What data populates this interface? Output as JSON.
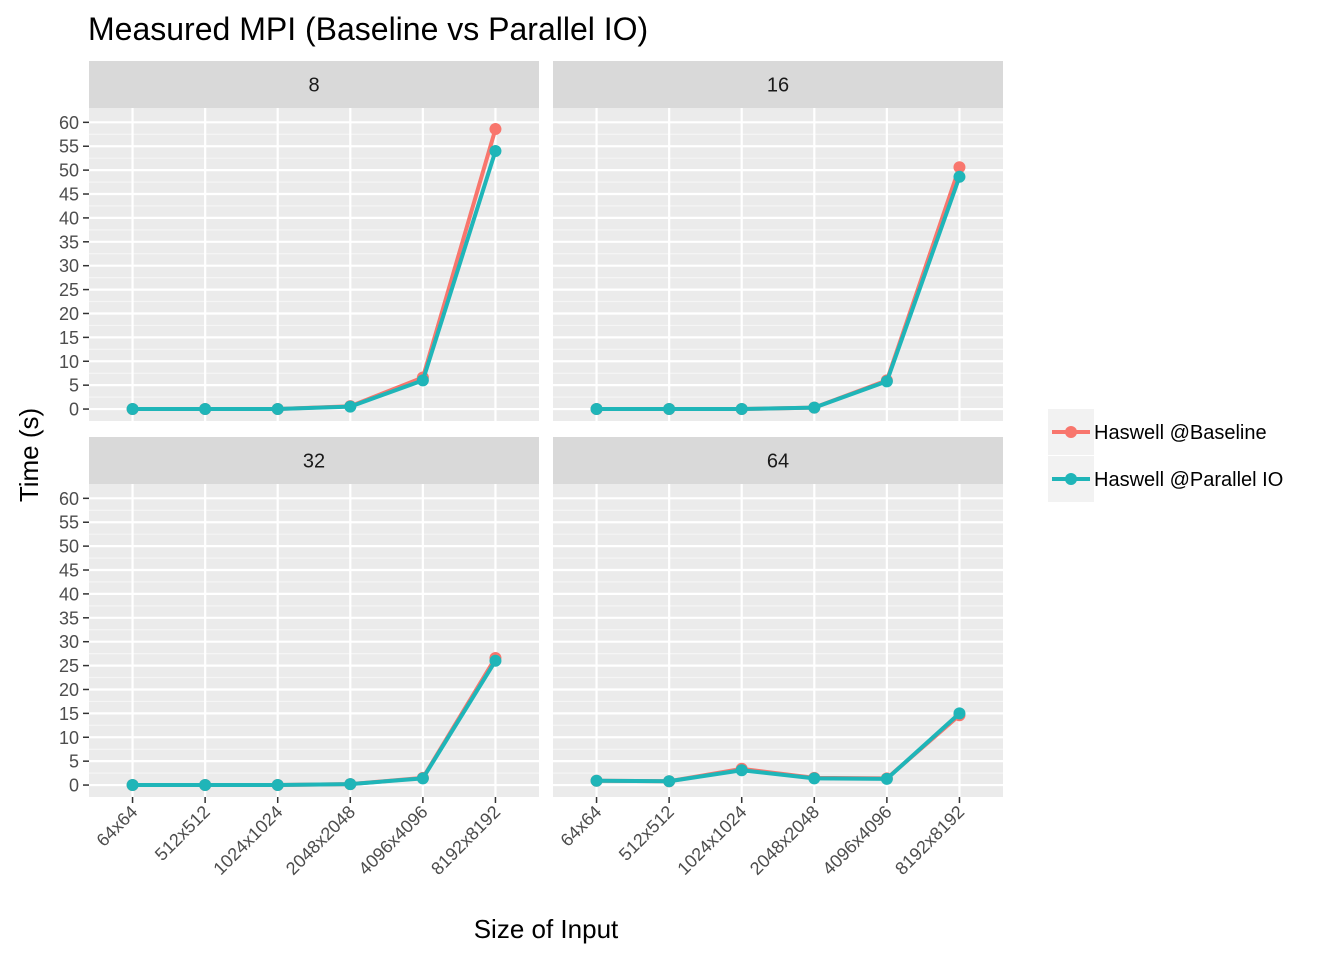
{
  "chart_data": {
    "type": "line",
    "title": "Measured MPI (Baseline vs Parallel IO)",
    "xlabel": "Size of Input",
    "ylabel": "Time (s)",
    "categories": [
      "64x64",
      "512x512",
      "1024x1024",
      "2048x2048",
      "4096x4096",
      "8192x8192"
    ],
    "yticks": [
      0,
      5,
      10,
      15,
      20,
      25,
      30,
      35,
      40,
      45,
      50,
      55,
      60
    ],
    "ylim": [
      -2.5,
      63
    ],
    "grid": true,
    "legend_position": "right",
    "series_styles": [
      {
        "name": "Haswell @Baseline",
        "color": "#F8766D"
      },
      {
        "name": "Haswell @Parallel IO",
        "color": "#1FB5B8"
      }
    ],
    "panels": [
      {
        "label": "8",
        "series": [
          {
            "name": "Haswell @Baseline",
            "values": [
              0.0,
              0.0,
              0.0,
              0.6,
              6.6,
              58.6
            ]
          },
          {
            "name": "Haswell @Parallel IO",
            "values": [
              0.0,
              0.0,
              0.0,
              0.5,
              6.0,
              54.0
            ]
          }
        ]
      },
      {
        "label": "16",
        "series": [
          {
            "name": "Haswell @Baseline",
            "values": [
              0.0,
              0.0,
              0.0,
              0.3,
              6.0,
              50.6
            ]
          },
          {
            "name": "Haswell @Parallel IO",
            "values": [
              0.0,
              0.0,
              0.0,
              0.3,
              5.8,
              48.6
            ]
          }
        ]
      },
      {
        "label": "32",
        "series": [
          {
            "name": "Haswell @Baseline",
            "values": [
              0.0,
              0.0,
              0.0,
              0.2,
              1.5,
              26.6
            ]
          },
          {
            "name": "Haswell @Parallel IO",
            "values": [
              0.0,
              0.0,
              0.0,
              0.2,
              1.4,
              26.0
            ]
          }
        ]
      },
      {
        "label": "64",
        "series": [
          {
            "name": "Haswell @Baseline",
            "values": [
              0.9,
              0.8,
              3.4,
              1.5,
              1.4,
              14.6
            ]
          },
          {
            "name": "Haswell @Parallel IO",
            "values": [
              0.9,
              0.8,
              3.1,
              1.4,
              1.3,
              15.0
            ]
          }
        ]
      }
    ]
  }
}
